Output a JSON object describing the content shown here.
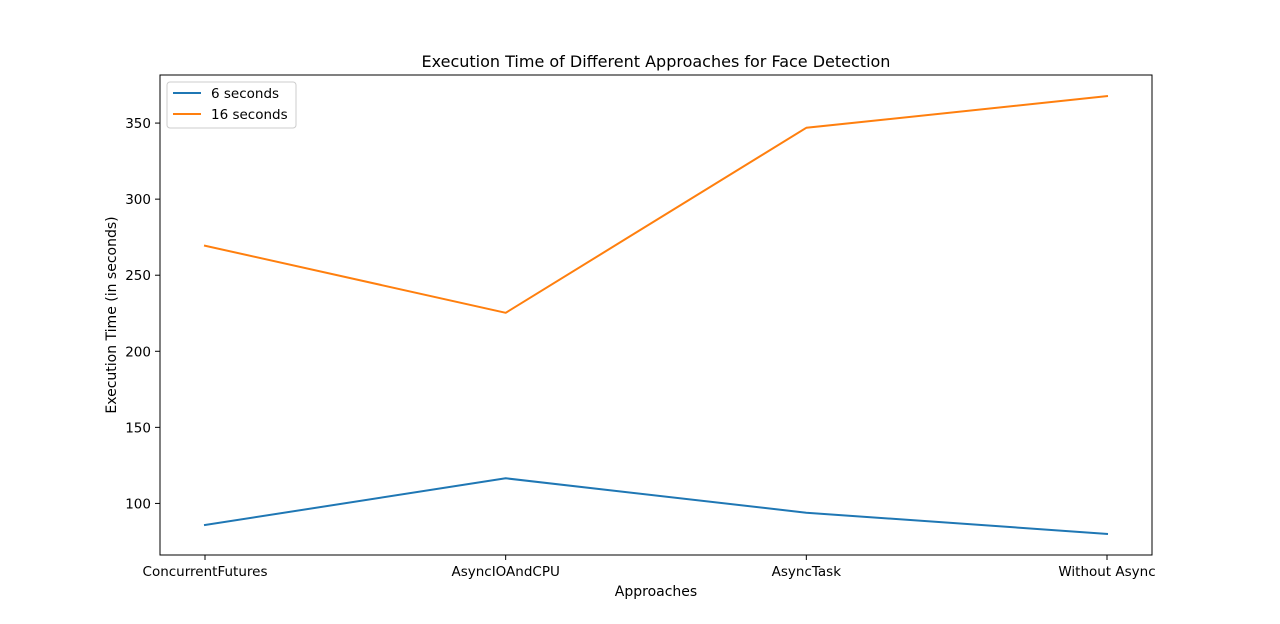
{
  "chart_data": {
    "type": "line",
    "title": "Execution Time of Different Approaches for Face Detection",
    "xlabel": "Approaches",
    "ylabel": "Execution Time (in seconds)",
    "categories": [
      "ConcurrentFutures",
      "AsyncIOAndCPU",
      "AsyncTask",
      "Without Async"
    ],
    "yticks": [
      100,
      150,
      200,
      250,
      300,
      350
    ],
    "ylim": [
      66.1,
      381.6
    ],
    "grid": false,
    "legend_position": "top-left",
    "series": [
      {
        "name": "6 seconds",
        "color": "#1f77b4",
        "values": [
          85.8,
          116.5,
          93.9,
          80.0
        ]
      },
      {
        "name": "16 seconds",
        "color": "#ff7f0e",
        "values": [
          269.4,
          225.3,
          346.9,
          367.7
        ]
      }
    ]
  }
}
